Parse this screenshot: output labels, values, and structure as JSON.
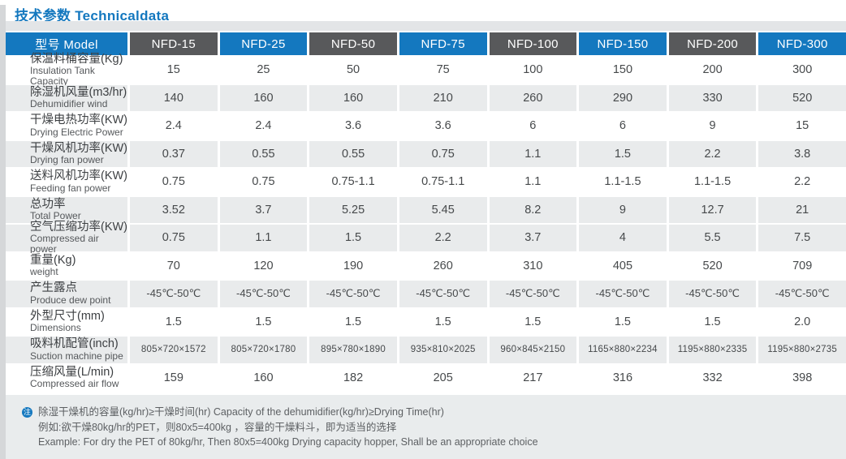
{
  "title": "技术参数 Technicaldata",
  "table": {
    "model_header": "型号 Model",
    "models": [
      "NFD-15",
      "NFD-25",
      "NFD-50",
      "NFD-75",
      "NFD-100",
      "NFD-150",
      "NFD-200",
      "NFD-300"
    ],
    "rows": [
      {
        "zh": "保温料桶容量(Kg)",
        "en": "Insulation Tank Capacity",
        "values": [
          "15",
          "25",
          "50",
          "75",
          "100",
          "150",
          "200",
          "300"
        ]
      },
      {
        "zh": "除湿机风量(m3/hr)",
        "en": "Dehumidifier wind",
        "values": [
          "140",
          "160",
          "160",
          "210",
          "260",
          "290",
          "330",
          "520"
        ]
      },
      {
        "zh": "干燥电热功率(KW)",
        "en": "Drying Electric Power",
        "values": [
          "2.4",
          "2.4",
          "3.6",
          "3.6",
          "6",
          "6",
          "9",
          "15"
        ]
      },
      {
        "zh": "干燥风机功率(KW)",
        "en": "Drying fan power",
        "values": [
          "0.37",
          "0.55",
          "0.55",
          "0.75",
          "1.1",
          "1.5",
          "2.2",
          "3.8"
        ]
      },
      {
        "zh": "送料风机功率(KW)",
        "en": "Feeding fan power",
        "values": [
          "0.75",
          "0.75",
          "0.75-1.1",
          "0.75-1.1",
          "1.1",
          "1.1-1.5",
          "1.1-1.5",
          "2.2"
        ]
      },
      {
        "zh": "总功率",
        "en": "Total Power",
        "values": [
          "3.52",
          "3.7",
          "5.25",
          "5.45",
          "8.2",
          "9",
          "12.7",
          "21"
        ]
      },
      {
        "zh": "空气压缩功率(KW)",
        "en": "Compressed air power",
        "values": [
          "0.75",
          "1.1",
          "1.5",
          "2.2",
          "3.7",
          "4",
          "5.5",
          "7.5"
        ]
      },
      {
        "zh": "重量(Kg)",
        "en": "weight",
        "values": [
          "70",
          "120",
          "190",
          "260",
          "310",
          "405",
          "520",
          "709"
        ]
      },
      {
        "zh": "产生露点",
        "en": "Produce dew point",
        "values": [
          "-45℃-50℃",
          "-45℃-50℃",
          "-45℃-50℃",
          "-45℃-50℃",
          "-45℃-50℃",
          "-45℃-50℃",
          "-45℃-50℃",
          "-45℃-50℃"
        ]
      },
      {
        "zh": "外型尺寸(mm)",
        "en": "Dimensions",
        "values": [
          "1.5",
          "1.5",
          "1.5",
          "1.5",
          "1.5",
          "1.5",
          "1.5",
          "2.0"
        ]
      },
      {
        "zh": "吸料机配管(inch)",
        "en": "Suction machine pipe",
        "values": [
          "805×720×1572",
          "805×720×1780",
          "895×780×1890",
          "935×810×2025",
          "960×845×2150",
          "1165×880×2234",
          "1195×880×2335",
          "1195×880×2735"
        ]
      },
      {
        "zh": "压缩风量(L/min)",
        "en": "Compressed air flow",
        "values": [
          "159",
          "160",
          "182",
          "205",
          "217",
          "316",
          "332",
          "398"
        ]
      }
    ]
  },
  "note": {
    "icon_glyph": "注",
    "line1": "除湿干燥机的容量(kg/hr)≥干燥时间(hr)   Capacity of the dehumidifier(kg/hr)≥Drying Time(hr)",
    "line2": "例如:欲干燥80kg/hr的PET，则80x5=400kg ，容量的干燥料斗，即为适当的选择",
    "line3": "Example: For dry the PET of 80kg/hr, Then 80x5=400kg Drying capacity hopper, Shall be an appropriate choice"
  },
  "colors": {
    "accent_blue": "#1478bf",
    "header_dark_gray": "#58595b",
    "row_shade_gray": "#e9ebec",
    "note_bg": "#e9eced"
  }
}
